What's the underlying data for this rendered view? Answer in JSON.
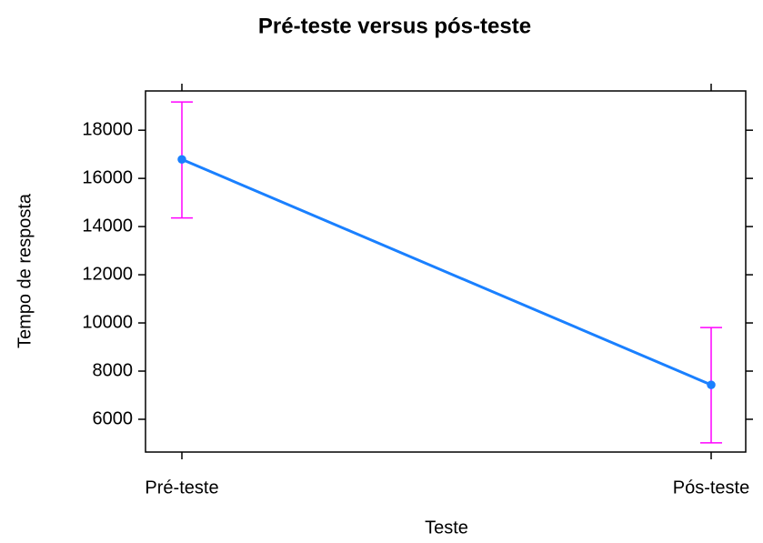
{
  "chart_data": {
    "type": "line",
    "title": "Pré-teste versus pós-teste",
    "x_label": "Teste",
    "y_label": "Tempo de resposta",
    "categories": [
      "Pré-teste",
      "Pós-teste"
    ],
    "series": [
      {
        "color": "#1a80ff",
        "error_color": "#ff00ff",
        "values": [
          16790,
          7430
        ],
        "lower": [
          14360,
          5020
        ],
        "upper": [
          19170,
          9810
        ]
      }
    ],
    "ylim": [
      4640,
      19630
    ],
    "yticks": [
      6000,
      8000,
      10000,
      12000,
      14000,
      16000,
      18000
    ]
  }
}
